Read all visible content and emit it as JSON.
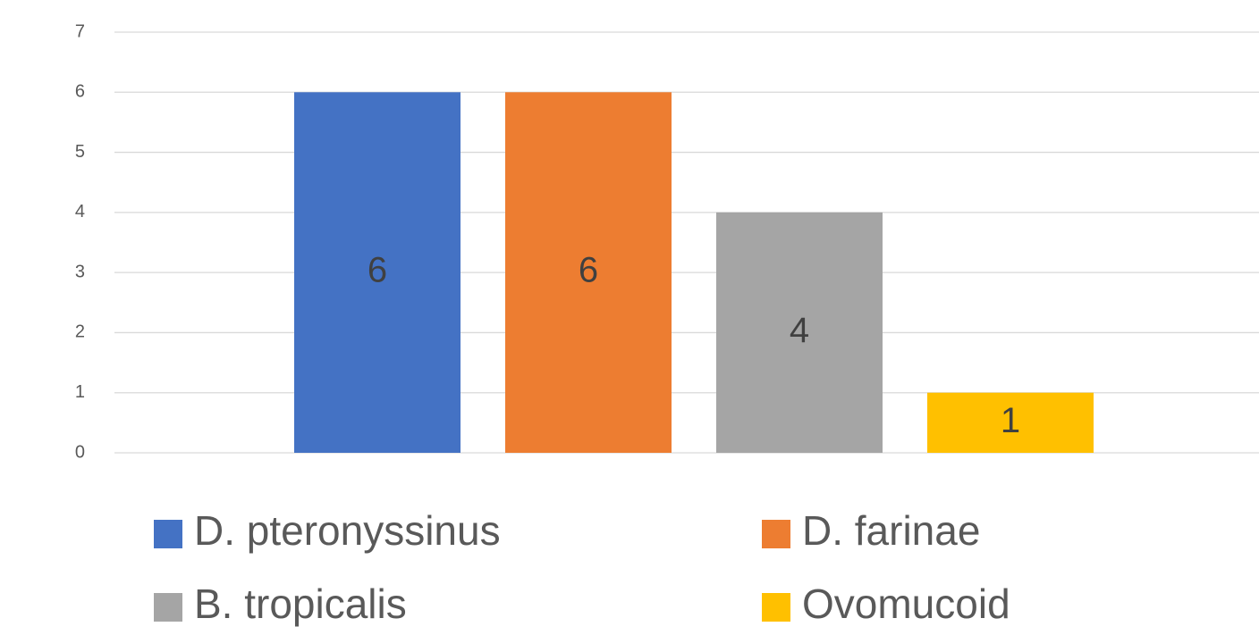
{
  "chart_data": {
    "type": "bar",
    "categories": [
      null
    ],
    "series": [
      {
        "name": "D. pteronyssinus",
        "color": "#4472c4",
        "values": [
          6
        ]
      },
      {
        "name": "D. farinae",
        "color": "#ed7d31",
        "values": [
          6
        ]
      },
      {
        "name": "B. tropicalis",
        "color": "#a5a5a5",
        "values": [
          4
        ]
      },
      {
        "name": "Ovomucoid",
        "color": "#ffc000",
        "values": [
          1
        ]
      }
    ],
    "ylim": [
      0,
      7
    ],
    "yticks": [
      0,
      1,
      2,
      3,
      4,
      5,
      6,
      7
    ],
    "grid": true,
    "legend": "bottom"
  }
}
